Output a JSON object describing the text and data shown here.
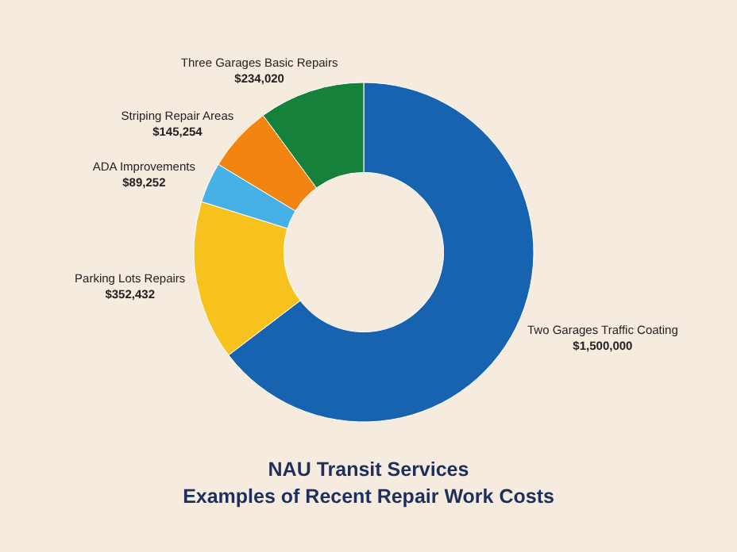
{
  "chart_data": {
    "type": "donut",
    "title": "NAU Transit Services",
    "subtitle": "Examples of Recent Repair Work Costs",
    "categories": [
      "Two Garages Traffic Coating",
      "Parking Lots Repairs",
      "ADA Improvements",
      "Striping Repair Areas",
      "Three Garages Basic Repairs"
    ],
    "values": [
      1500000,
      352432,
      89252,
      145254,
      234020
    ],
    "value_labels": [
      "$1,500,000",
      "$352,432",
      "$89,252",
      "$145,254",
      "$234,020"
    ],
    "colors": [
      "#1763b0",
      "#f7c21e",
      "#45b1e6",
      "#f28412",
      "#16813a"
    ]
  }
}
